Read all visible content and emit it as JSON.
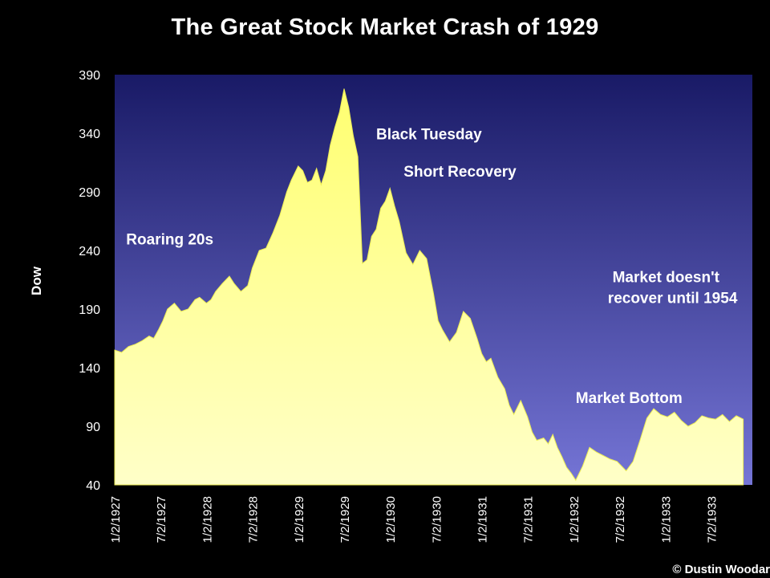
{
  "chart_data": {
    "type": "area",
    "title": "The Great Stock Market Crash of 1929",
    "ylabel": "Dow",
    "ylim": [
      40,
      390
    ],
    "yticks": [
      "390",
      "340",
      "290",
      "240",
      "190",
      "140",
      "90",
      "40"
    ],
    "xticks": [
      "1/2/1927",
      "7/2/1927",
      "1/2/1928",
      "7/2/1928",
      "1/2/1929",
      "7/2/1929",
      "1/2/1930",
      "7/2/1930",
      "1/2/1931",
      "7/2/1931",
      "1/2/1932",
      "7/2/1932",
      "1/2/1933",
      "7/2/1933"
    ],
    "x_start": "1/2/1927",
    "x_step_months": 6,
    "grid": false,
    "series": [
      {
        "x": [
          0,
          0.15,
          0.3,
          0.45,
          0.6,
          0.75,
          0.85,
          0.95,
          1.05,
          1.15,
          1.3,
          1.45,
          1.6,
          1.75,
          1.85,
          2.0,
          2.1,
          2.2,
          2.35,
          2.5,
          2.6,
          2.75,
          2.9,
          3.0,
          3.15,
          3.3,
          3.45,
          3.6,
          3.75,
          3.85,
          4.0,
          4.1,
          4.2,
          4.3,
          4.4,
          4.5,
          4.6,
          4.7,
          4.8,
          4.9,
          5.0,
          5.1,
          5.2,
          5.3,
          5.4,
          5.5,
          5.6,
          5.7,
          5.8,
          5.9,
          6.0,
          6.1,
          6.2,
          6.35,
          6.5,
          6.65,
          6.8,
          6.95,
          7.05,
          7.15,
          7.3,
          7.45,
          7.6,
          7.75,
          7.9,
          8.0,
          8.1,
          8.2,
          8.35,
          8.5,
          8.6,
          8.7,
          8.85,
          9.0,
          9.1,
          9.2,
          9.35,
          9.45,
          9.55,
          9.65,
          9.75,
          9.85,
          9.95,
          10.05,
          10.2,
          10.35,
          10.5,
          10.65,
          10.8,
          10.95,
          11.05,
          11.15,
          11.3,
          11.45,
          11.6,
          11.75,
          11.9,
          12.05,
          12.2,
          12.35,
          12.5,
          12.65,
          12.8,
          12.95,
          13.1,
          13.25,
          13.4,
          13.55,
          13.7
        ],
        "values": [
          155,
          153,
          158,
          160,
          163,
          167,
          165,
          172,
          180,
          190,
          195,
          188,
          190,
          198,
          200,
          195,
          198,
          205,
          212,
          218,
          212,
          205,
          210,
          225,
          240,
          242,
          255,
          270,
          290,
          300,
          312,
          308,
          298,
          300,
          310,
          296,
          308,
          330,
          345,
          358,
          378,
          362,
          338,
          320,
          229,
          232,
          252,
          258,
          276,
          282,
          293,
          278,
          265,
          238,
          228,
          240,
          233,
          203,
          180,
          172,
          162,
          170,
          188,
          182,
          165,
          152,
          145,
          148,
          132,
          122,
          108,
          100,
          112,
          98,
          85,
          78,
          80,
          75,
          83,
          72,
          64,
          55,
          50,
          44,
          56,
          72,
          68,
          65,
          62,
          60,
          56,
          52,
          60,
          78,
          97,
          105,
          100,
          98,
          102,
          95,
          90,
          93,
          99,
          97,
          96,
          100,
          94,
          99,
          96
        ]
      }
    ],
    "annotations": [
      {
        "text": "Roaring 20s",
        "x": 0.25,
        "y": 245
      },
      {
        "text": "Black Tuesday",
        "x": 5.7,
        "y": 335
      },
      {
        "text": "Short Recovery",
        "x": 6.3,
        "y": 303
      },
      {
        "text": "Market doesn't",
        "x": 10.85,
        "y": 213
      },
      {
        "text": "recover until 1954",
        "x": 10.75,
        "y": 195
      },
      {
        "text": "Market Bottom",
        "x": 10.05,
        "y": 110
      }
    ],
    "colors": {
      "fill": "#FFFF8C",
      "bg_top": "#191A66",
      "bg_bottom": "#7575D6",
      "text": "#FFFFFF",
      "page_bg": "#000000"
    }
  },
  "credit": "© Dustin Woodar"
}
